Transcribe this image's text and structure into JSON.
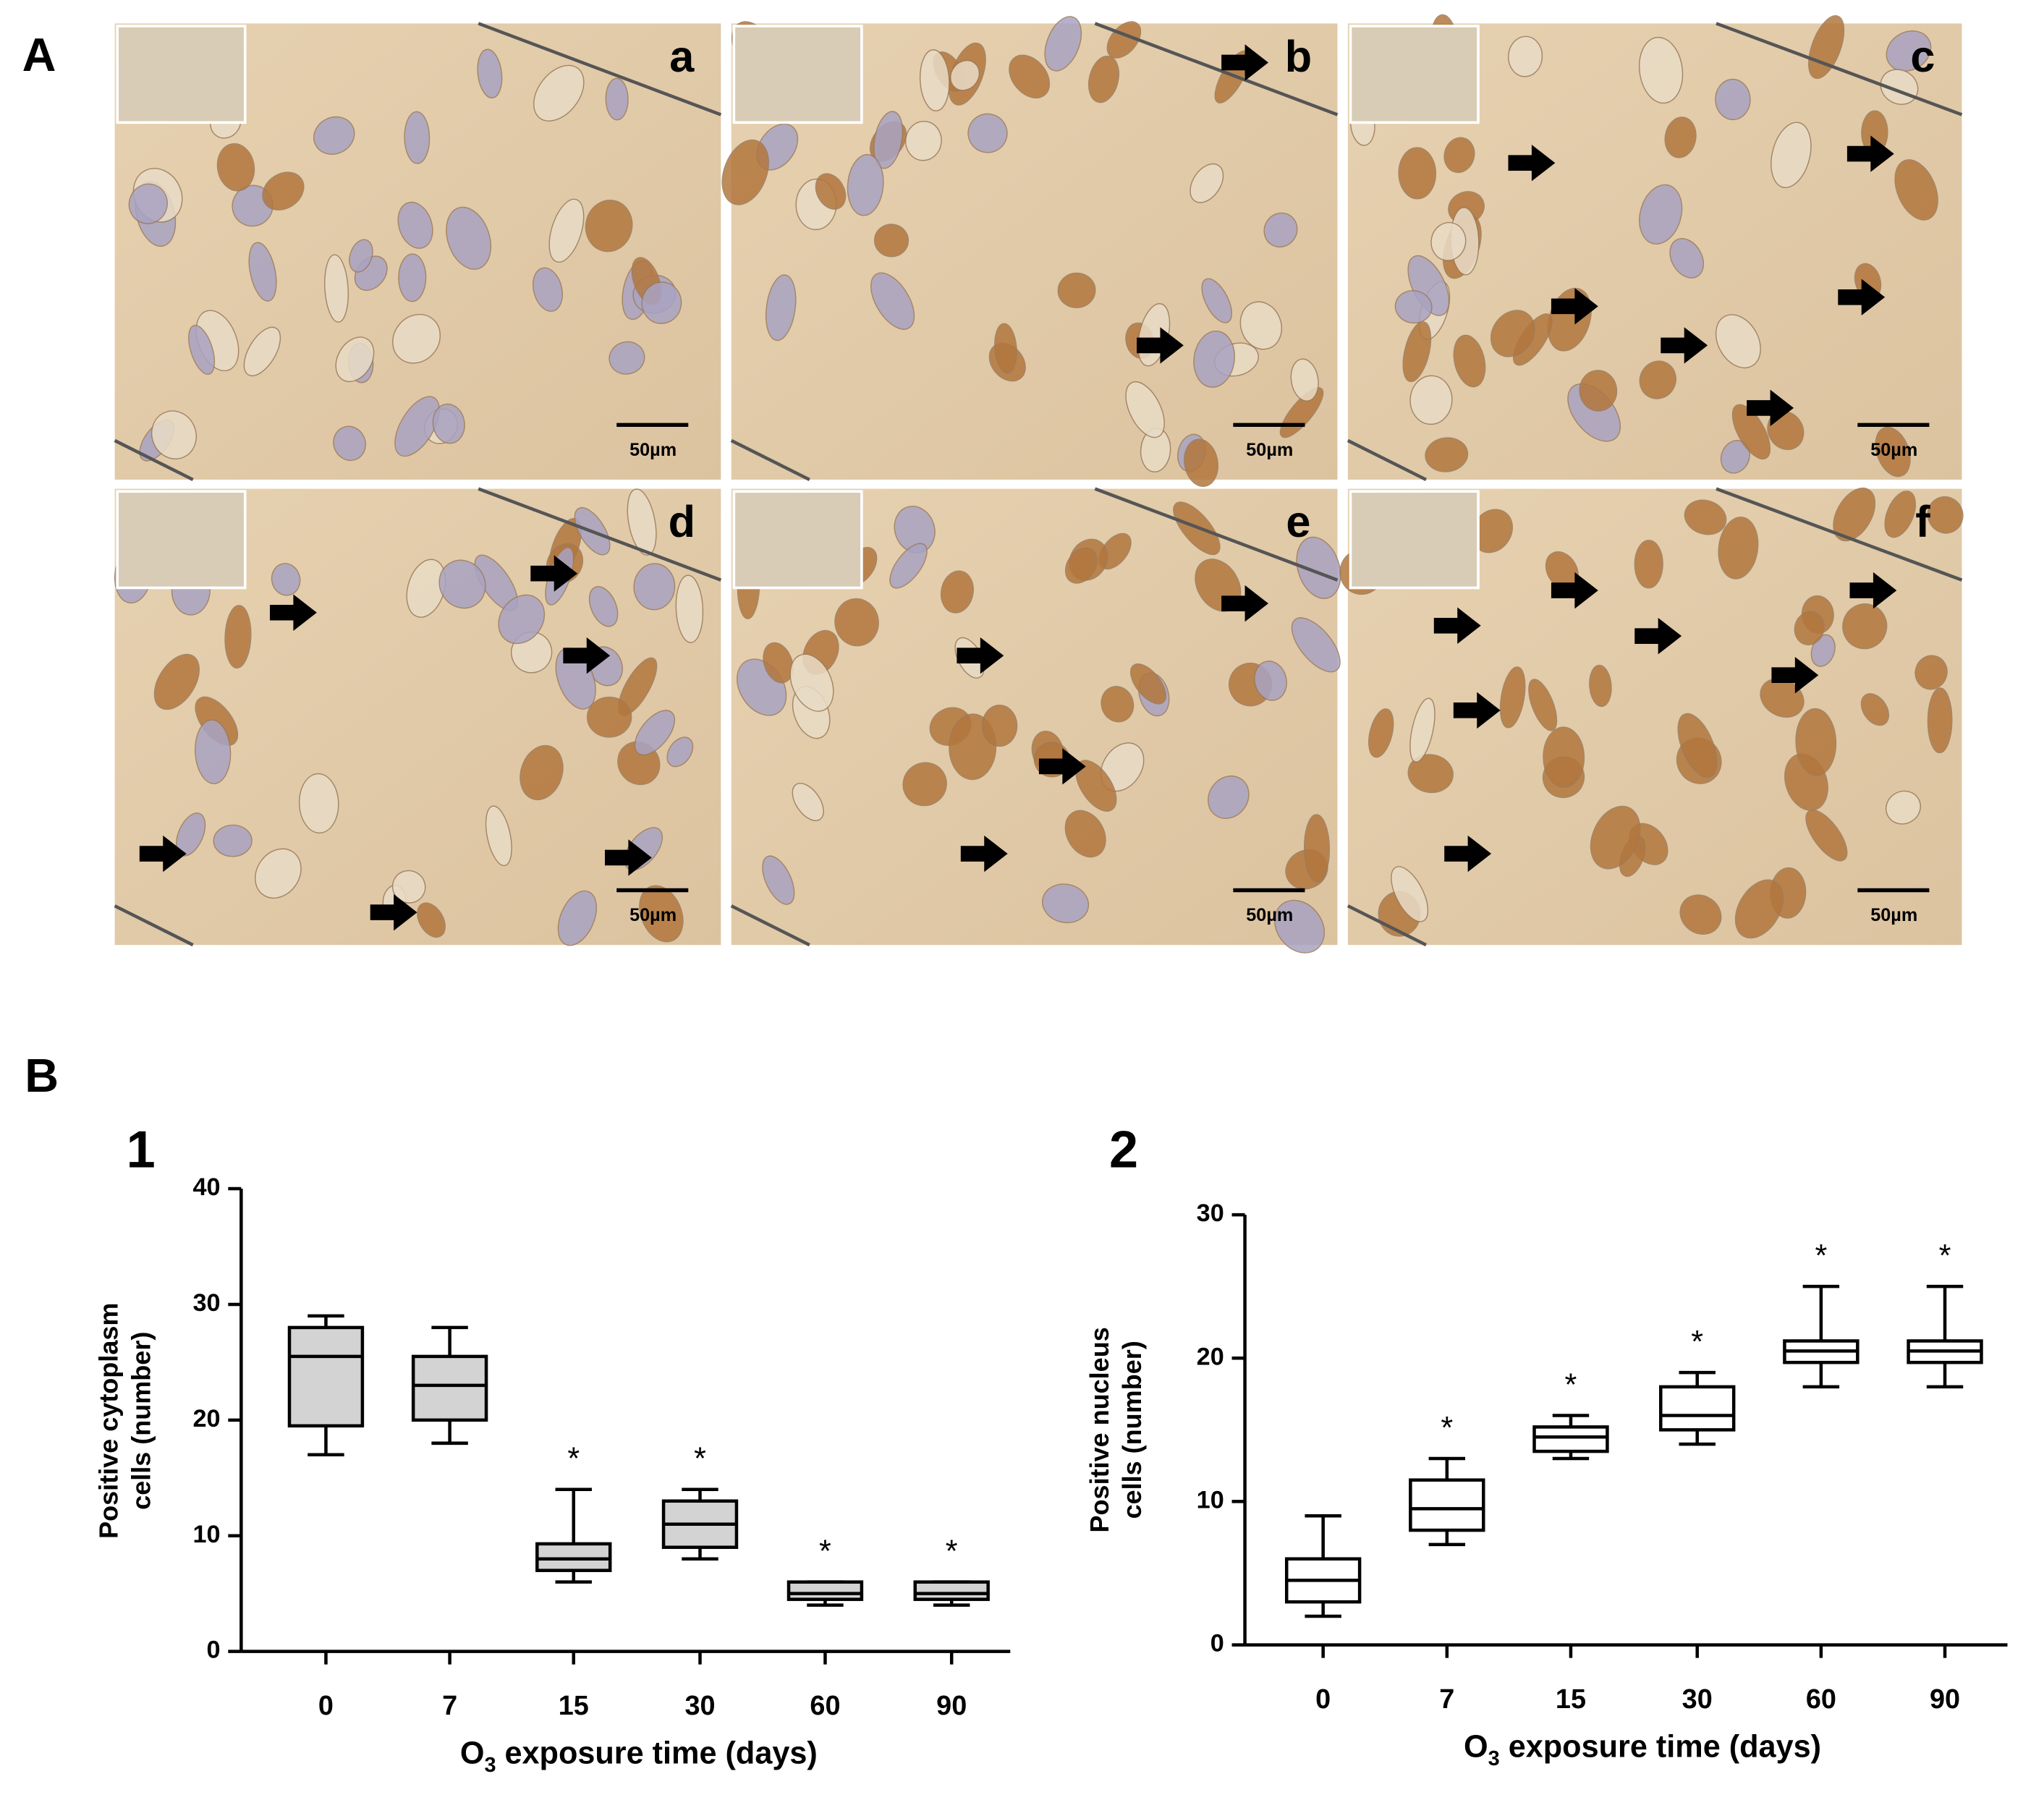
{
  "figure": {
    "panel_labels": [
      "A",
      "B"
    ],
    "micrographs": [
      {
        "label": "a",
        "scale_bar": "50µm"
      },
      {
        "label": "b",
        "scale_bar": "50µm"
      },
      {
        "label": "c",
        "scale_bar": "50µm"
      },
      {
        "label": "d",
        "scale_bar": "50µm"
      },
      {
        "label": "e",
        "scale_bar": "50µm"
      },
      {
        "label": "f",
        "scale_bar": "50µm"
      }
    ]
  },
  "chart_data": [
    {
      "type": "box",
      "panel": "1",
      "fill": "#d3d3d3",
      "ylabel": [
        "Positive cytoplasm",
        "cells (number)"
      ],
      "xlabel_parts": [
        "O",
        "3",
        " exposure time (days)"
      ],
      "categories": [
        "0",
        "7",
        "15",
        "30",
        "60",
        "90"
      ],
      "min": [
        17,
        18,
        6,
        8,
        4,
        4
      ],
      "q1": [
        19.5,
        20,
        7,
        9,
        4.5,
        4.5
      ],
      "median": [
        25.5,
        23,
        8,
        11,
        5,
        5
      ],
      "q3": [
        28,
        25.5,
        9.3,
        13,
        6,
        6
      ],
      "max": [
        29,
        28,
        14,
        14,
        6,
        6
      ],
      "annotations": [
        null,
        null,
        "*",
        "*",
        "*",
        "*"
      ],
      "ylim": [
        0,
        40
      ],
      "yticks": [
        0,
        10,
        20,
        30,
        40
      ]
    },
    {
      "type": "box",
      "panel": "2",
      "fill": "#ffffff",
      "ylabel": [
        "Positive nucleus",
        "cells (number)"
      ],
      "xlabel_parts": [
        "O",
        "3",
        " exposure time (days)"
      ],
      "categories": [
        "0",
        "7",
        "15",
        "30",
        "60",
        "90"
      ],
      "min": [
        2,
        7,
        13,
        14,
        18,
        18
      ],
      "q1": [
        3,
        8,
        13.5,
        15,
        19.7,
        19.7
      ],
      "median": [
        4.5,
        9.5,
        14.5,
        16,
        20.5,
        20.5
      ],
      "q3": [
        6,
        11.5,
        15.2,
        18,
        21.2,
        21.2
      ],
      "max": [
        9,
        13,
        16,
        19,
        25,
        25
      ],
      "annotations": [
        null,
        "*",
        "*",
        "*",
        "*",
        "*"
      ],
      "ylim": [
        0,
        30
      ],
      "yticks": [
        0,
        10,
        20,
        30
      ]
    }
  ]
}
